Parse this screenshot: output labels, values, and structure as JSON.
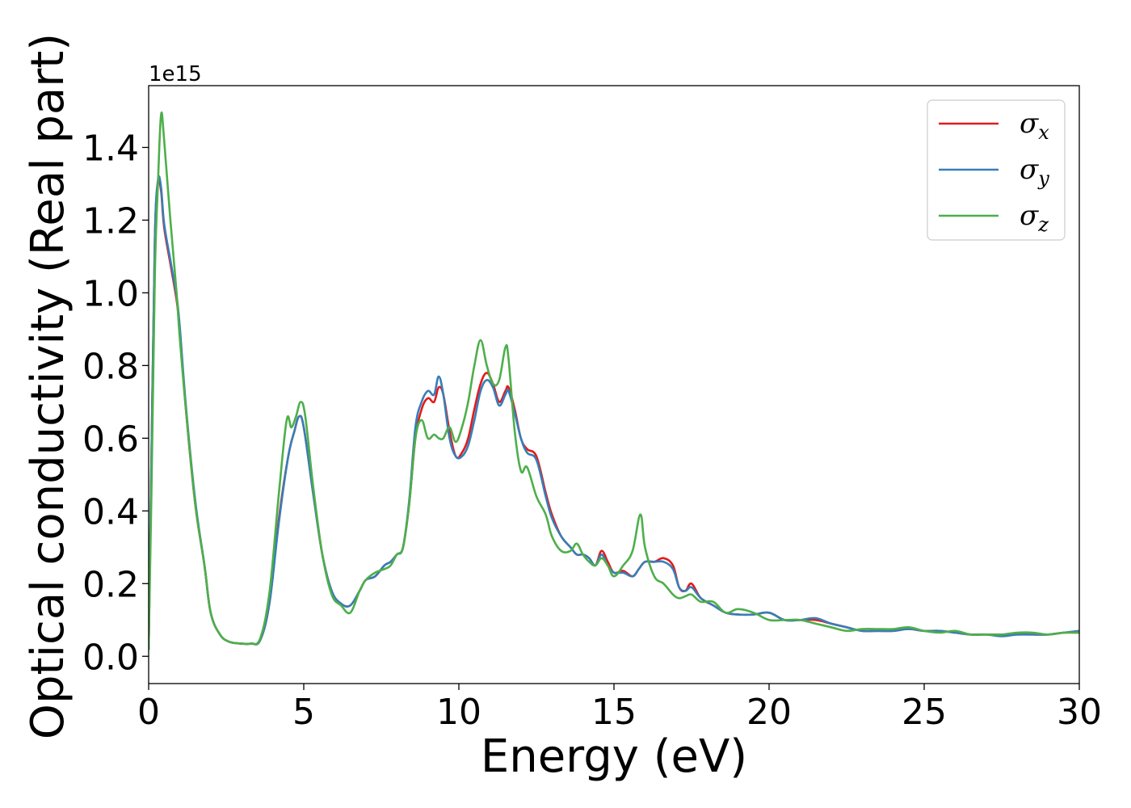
{
  "chart_data": {
    "type": "line",
    "title": "",
    "xlabel": "Energy (eV)",
    "ylabel": "Optical conductivity (Real part)",
    "y_offset_label": "1e15",
    "y_scale_factor": 1000000000000000.0,
    "xlim": [
      0,
      30
    ],
    "ylim": [
      -0.075,
      1.57
    ],
    "xticks": [
      0,
      5,
      10,
      15,
      20,
      25,
      30
    ],
    "xtick_labels": [
      "0",
      "5",
      "10",
      "15",
      "20",
      "25",
      "30"
    ],
    "yticks": [
      0.0,
      0.2,
      0.4,
      0.6,
      0.8,
      1.0,
      1.2,
      1.4
    ],
    "ytick_labels": [
      "0.0",
      "0.2",
      "0.4",
      "0.6",
      "0.8",
      "1.0",
      "1.2",
      "1.4"
    ],
    "grid": false,
    "legend_position": "top-right",
    "series": [
      {
        "name": "σx",
        "legend_symbol": "σ",
        "legend_subscript": "x",
        "color": "#e41a1c",
        "x": [
          0,
          0.1,
          0.2,
          0.3,
          0.4,
          0.5,
          0.7,
          0.9,
          1.0,
          1.2,
          1.5,
          1.8,
          2.0,
          2.3,
          2.6,
          3.0,
          3.3,
          3.6,
          3.9,
          4.2,
          4.5,
          4.7,
          4.85,
          5.0,
          5.3,
          5.6,
          5.9,
          6.2,
          6.5,
          6.8,
          7.0,
          7.3,
          7.6,
          7.8,
          8.0,
          8.2,
          8.4,
          8.6,
          8.8,
          9.0,
          9.2,
          9.35,
          9.5,
          9.7,
          9.9,
          10.1,
          10.3,
          10.5,
          10.7,
          10.9,
          11.1,
          11.3,
          11.5,
          11.6,
          11.8,
          12.0,
          12.2,
          12.5,
          12.8,
          13.0,
          13.3,
          13.6,
          13.8,
          14.0,
          14.2,
          14.4,
          14.6,
          14.8,
          15.0,
          15.3,
          15.6,
          15.8,
          16.0,
          16.3,
          16.6,
          16.9,
          17.1,
          17.3,
          17.5,
          17.8,
          18.2,
          18.6,
          19.0,
          19.5,
          20.0,
          20.5,
          21.0,
          21.5,
          22.0,
          22.5,
          23.0,
          23.5,
          24.0,
          24.5,
          25.0,
          25.5,
          26.0,
          26.5,
          27.0,
          27.5,
          28.0,
          28.5,
          29.0,
          29.5,
          30.0
        ],
        "y": [
          0.02,
          0.6,
          1.15,
          1.3,
          1.28,
          1.18,
          1.08,
          0.98,
          0.9,
          0.68,
          0.42,
          0.25,
          0.12,
          0.06,
          0.04,
          0.035,
          0.035,
          0.045,
          0.15,
          0.38,
          0.55,
          0.62,
          0.66,
          0.63,
          0.45,
          0.28,
          0.18,
          0.145,
          0.14,
          0.18,
          0.21,
          0.22,
          0.25,
          0.26,
          0.28,
          0.3,
          0.42,
          0.6,
          0.68,
          0.71,
          0.7,
          0.74,
          0.72,
          0.62,
          0.55,
          0.56,
          0.6,
          0.68,
          0.75,
          0.78,
          0.75,
          0.7,
          0.73,
          0.74,
          0.68,
          0.6,
          0.57,
          0.55,
          0.45,
          0.39,
          0.33,
          0.3,
          0.28,
          0.28,
          0.27,
          0.25,
          0.29,
          0.26,
          0.23,
          0.235,
          0.22,
          0.24,
          0.26,
          0.26,
          0.27,
          0.25,
          0.19,
          0.18,
          0.2,
          0.16,
          0.14,
          0.12,
          0.115,
          0.115,
          0.12,
          0.1,
          0.1,
          0.1,
          0.09,
          0.08,
          0.07,
          0.07,
          0.07,
          0.075,
          0.07,
          0.07,
          0.065,
          0.06,
          0.06,
          0.06,
          0.06,
          0.06,
          0.06,
          0.065,
          0.065
        ]
      },
      {
        "name": "σy",
        "legend_symbol": "σ",
        "legend_subscript": "y",
        "color": "#377eb8",
        "x": [
          0,
          0.1,
          0.2,
          0.3,
          0.4,
          0.5,
          0.7,
          0.9,
          1.0,
          1.2,
          1.5,
          1.8,
          2.0,
          2.3,
          2.6,
          3.0,
          3.3,
          3.6,
          3.9,
          4.2,
          4.5,
          4.7,
          4.85,
          5.0,
          5.3,
          5.6,
          5.9,
          6.2,
          6.5,
          6.8,
          7.0,
          7.3,
          7.6,
          7.8,
          8.0,
          8.2,
          8.4,
          8.6,
          8.8,
          9.0,
          9.2,
          9.35,
          9.5,
          9.7,
          9.9,
          10.1,
          10.3,
          10.5,
          10.7,
          10.9,
          11.1,
          11.3,
          11.5,
          11.6,
          11.8,
          12.0,
          12.2,
          12.5,
          12.8,
          13.0,
          13.3,
          13.6,
          13.8,
          14.0,
          14.2,
          14.4,
          14.6,
          14.8,
          15.0,
          15.3,
          15.6,
          15.8,
          16.0,
          16.3,
          16.6,
          16.9,
          17.1,
          17.3,
          17.5,
          17.8,
          18.2,
          18.6,
          19.0,
          19.5,
          20.0,
          20.5,
          21.0,
          21.5,
          22.0,
          22.5,
          23.0,
          23.5,
          24.0,
          24.5,
          25.0,
          25.5,
          26.0,
          26.5,
          27.0,
          27.5,
          28.0,
          28.5,
          29.0,
          29.5,
          30.0
        ],
        "y": [
          0.02,
          0.6,
          1.15,
          1.31,
          1.29,
          1.19,
          1.09,
          0.99,
          0.91,
          0.69,
          0.43,
          0.25,
          0.12,
          0.06,
          0.04,
          0.035,
          0.035,
          0.045,
          0.15,
          0.37,
          0.55,
          0.62,
          0.66,
          0.63,
          0.45,
          0.28,
          0.18,
          0.145,
          0.14,
          0.18,
          0.21,
          0.22,
          0.25,
          0.26,
          0.28,
          0.3,
          0.43,
          0.63,
          0.7,
          0.73,
          0.72,
          0.77,
          0.72,
          0.6,
          0.55,
          0.55,
          0.58,
          0.65,
          0.73,
          0.76,
          0.74,
          0.69,
          0.72,
          0.73,
          0.67,
          0.6,
          0.56,
          0.54,
          0.44,
          0.38,
          0.33,
          0.3,
          0.28,
          0.28,
          0.27,
          0.25,
          0.28,
          0.25,
          0.23,
          0.23,
          0.22,
          0.24,
          0.26,
          0.26,
          0.26,
          0.24,
          0.19,
          0.18,
          0.19,
          0.16,
          0.14,
          0.12,
          0.115,
          0.115,
          0.12,
          0.1,
          0.1,
          0.105,
          0.09,
          0.08,
          0.07,
          0.07,
          0.07,
          0.075,
          0.07,
          0.07,
          0.065,
          0.06,
          0.06,
          0.055,
          0.06,
          0.06,
          0.06,
          0.065,
          0.07
        ]
      },
      {
        "name": "σz",
        "legend_symbol": "σ",
        "legend_subscript": "z",
        "color": "#4daf4a",
        "x": [
          0,
          0.1,
          0.2,
          0.3,
          0.4,
          0.5,
          0.7,
          0.9,
          1.0,
          1.2,
          1.5,
          1.8,
          2.0,
          2.3,
          2.6,
          3.0,
          3.3,
          3.6,
          3.9,
          4.2,
          4.45,
          4.6,
          4.75,
          4.9,
          5.05,
          5.3,
          5.6,
          5.9,
          6.2,
          6.5,
          6.8,
          7.0,
          7.3,
          7.6,
          7.8,
          8.0,
          8.2,
          8.4,
          8.6,
          8.8,
          9.0,
          9.2,
          9.35,
          9.5,
          9.7,
          9.9,
          10.1,
          10.3,
          10.5,
          10.7,
          10.9,
          11.1,
          11.3,
          11.5,
          11.6,
          11.8,
          12.0,
          12.2,
          12.5,
          12.8,
          13.0,
          13.3,
          13.6,
          13.8,
          14.0,
          14.2,
          14.4,
          14.6,
          14.8,
          15.0,
          15.3,
          15.6,
          15.85,
          16.0,
          16.3,
          16.6,
          16.9,
          17.1,
          17.3,
          17.5,
          17.8,
          18.2,
          18.6,
          19.0,
          19.5,
          20.0,
          20.5,
          21.0,
          21.5,
          22.0,
          22.5,
          23.0,
          23.5,
          24.0,
          24.5,
          25.0,
          25.5,
          26.0,
          26.5,
          27.0,
          27.5,
          28.0,
          28.5,
          29.0,
          29.5,
          30.0
        ],
        "y": [
          0.02,
          0.5,
          1.05,
          1.3,
          1.49,
          1.42,
          1.2,
          1.0,
          0.88,
          0.68,
          0.42,
          0.25,
          0.12,
          0.06,
          0.04,
          0.035,
          0.035,
          0.05,
          0.18,
          0.45,
          0.65,
          0.63,
          0.66,
          0.7,
          0.66,
          0.47,
          0.28,
          0.17,
          0.14,
          0.12,
          0.18,
          0.21,
          0.23,
          0.24,
          0.25,
          0.28,
          0.3,
          0.42,
          0.6,
          0.65,
          0.6,
          0.61,
          0.6,
          0.6,
          0.63,
          0.59,
          0.63,
          0.7,
          0.8,
          0.87,
          0.8,
          0.75,
          0.76,
          0.85,
          0.82,
          0.62,
          0.51,
          0.52,
          0.44,
          0.39,
          0.33,
          0.29,
          0.29,
          0.31,
          0.28,
          0.26,
          0.25,
          0.27,
          0.25,
          0.22,
          0.25,
          0.29,
          0.39,
          0.3,
          0.22,
          0.2,
          0.17,
          0.16,
          0.165,
          0.17,
          0.15,
          0.15,
          0.12,
          0.13,
          0.12,
          0.1,
          0.1,
          0.1,
          0.09,
          0.08,
          0.07,
          0.075,
          0.075,
          0.075,
          0.08,
          0.07,
          0.065,
          0.07,
          0.06,
          0.06,
          0.06,
          0.065,
          0.065,
          0.06,
          0.065,
          0.065
        ]
      }
    ]
  }
}
